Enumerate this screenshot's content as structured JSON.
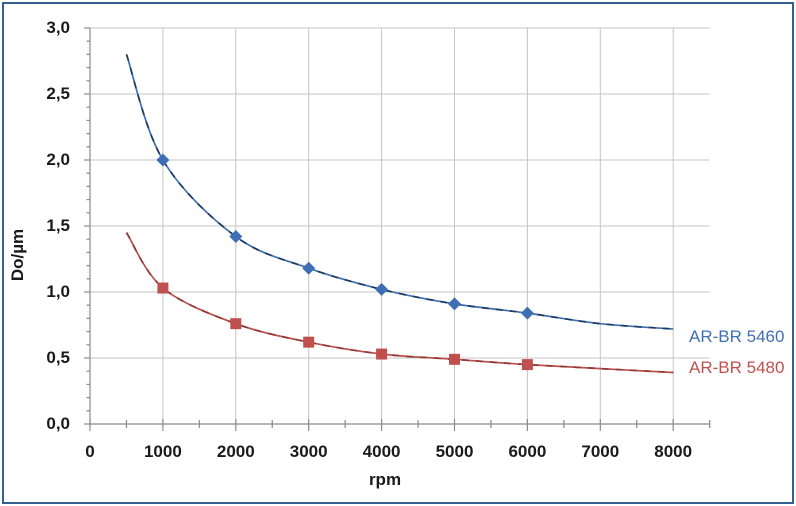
{
  "chart_data": {
    "type": "line",
    "title": "",
    "xlabel": "rpm",
    "ylabel": "Do/µm",
    "xlim": [
      0,
      8500
    ],
    "ylim": [
      0,
      3.0
    ],
    "grid": true,
    "legend_position": "right-of-plot",
    "x_tick_values": [
      0,
      1000,
      2000,
      3000,
      4000,
      5000,
      6000,
      7000,
      8000
    ],
    "x_tick_labels": [
      "0",
      "1000",
      "2000",
      "3000",
      "4000",
      "5000",
      "6000",
      "7000",
      "8000"
    ],
    "x_minor_step": 500,
    "y_tick_values": [
      0,
      0.5,
      1.0,
      1.5,
      2.0,
      2.5,
      3.0
    ],
    "y_tick_labels": [
      "0,0",
      "0,5",
      "1,0",
      "1,5",
      "2,0",
      "2,5",
      "3,0"
    ],
    "y_minor_step": 0.1,
    "series": [
      {
        "name": "AR-BR 5460",
        "color": "#3E6FB5",
        "dash_color": "#1F3A5F",
        "marker": "diamond",
        "x": [
          500,
          1000,
          2000,
          3000,
          4000,
          5000,
          6000,
          7000,
          8000
        ],
        "y": [
          2.8,
          2.0,
          1.42,
          1.18,
          1.02,
          0.91,
          0.84,
          0.76,
          0.72
        ],
        "marker_x": [
          1000,
          2000,
          3000,
          4000,
          5000,
          6000
        ]
      },
      {
        "name": "AR-BR 5480",
        "color": "#C0504D",
        "dash_color": "#8C3A37",
        "marker": "square",
        "x": [
          500,
          1000,
          2000,
          3000,
          4000,
          5000,
          6000,
          7000,
          8000
        ],
        "y": [
          1.45,
          1.03,
          0.76,
          0.62,
          0.53,
          0.49,
          0.45,
          0.42,
          0.39
        ],
        "marker_x": [
          1000,
          2000,
          3000,
          4000,
          5000,
          6000
        ]
      }
    ]
  },
  "frame": {
    "border_color": "#33608F",
    "background": "#FFFFFF"
  },
  "colors": {
    "gridline": "#C5C5C5",
    "axis_line": "#8A8A8A",
    "tick_text": "#1A1A1A"
  }
}
